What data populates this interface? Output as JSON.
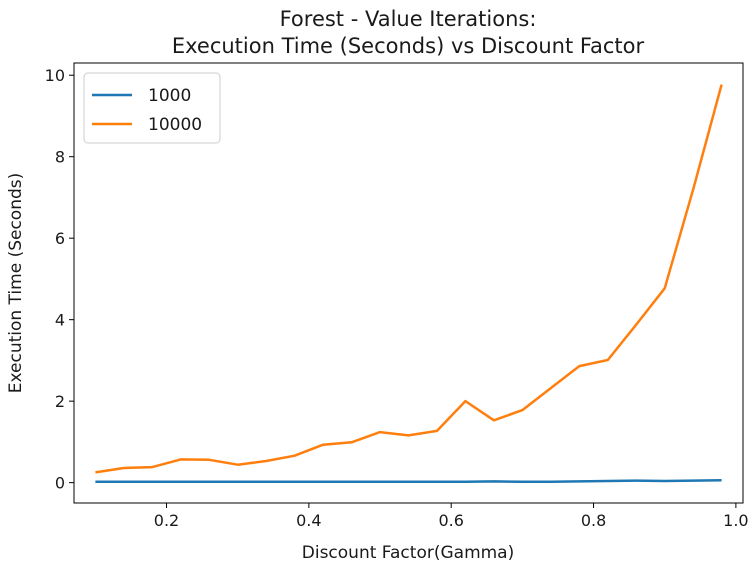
{
  "chart_data": {
    "type": "line",
    "title_line1": "Forest - Value Iterations:",
    "title_line2": "Execution Time (Seconds) vs Discount Factor",
    "xlabel": "Discount Factor(Gamma)",
    "ylabel": "Execution Time (Seconds)",
    "xlim": [
      0.07,
      1.01
    ],
    "ylim": [
      -0.5,
      10.3
    ],
    "xticks": [
      0.2,
      0.4,
      0.6,
      0.8,
      1.0
    ],
    "xtick_labels": [
      "0.2",
      "0.4",
      "0.6",
      "0.8",
      "1.0"
    ],
    "yticks": [
      0,
      2,
      4,
      6,
      8,
      10
    ],
    "ytick_labels": [
      "0",
      "2",
      "4",
      "6",
      "8",
      "10"
    ],
    "grid": false,
    "legend_position": "top-left",
    "x": [
      0.1,
      0.14,
      0.18,
      0.22,
      0.26,
      0.3,
      0.34,
      0.38,
      0.42,
      0.46,
      0.5,
      0.54,
      0.58,
      0.62,
      0.66,
      0.7,
      0.74,
      0.78,
      0.82,
      0.86,
      0.9,
      0.94,
      0.98
    ],
    "series": [
      {
        "name": "1000",
        "color": "#1f77b4",
        "values": [
          0.02,
          0.02,
          0.02,
          0.02,
          0.02,
          0.02,
          0.02,
          0.02,
          0.02,
          0.02,
          0.02,
          0.02,
          0.02,
          0.02,
          0.03,
          0.02,
          0.02,
          0.03,
          0.04,
          0.05,
          0.04,
          0.05,
          0.06
        ]
      },
      {
        "name": "10000",
        "color": "#ff7f0e",
        "values": [
          0.25,
          0.36,
          0.38,
          0.57,
          0.56,
          0.44,
          0.53,
          0.66,
          0.93,
          0.99,
          1.24,
          1.16,
          1.27,
          2.0,
          1.53,
          1.78,
          2.32,
          2.86,
          3.01,
          3.88,
          4.77,
          7.2,
          9.77
        ]
      }
    ]
  }
}
